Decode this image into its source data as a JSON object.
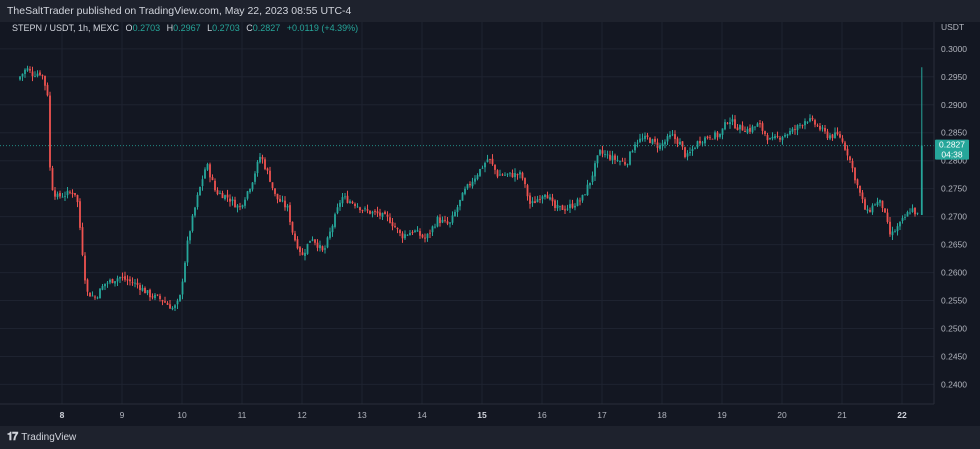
{
  "header": {
    "published": "TheSaltTrader published on TradingView.com, May 22, 2023 08:55 UTC-4"
  },
  "legend": {
    "symbol": "STEPN / USDT, 1h, MEXC",
    "o_label": "O",
    "o_value": "0.2703",
    "h_label": "H",
    "h_value": "0.2967",
    "l_label": "L",
    "l_value": "0.2703",
    "c_label": "C",
    "c_value": "0.2827",
    "change": "+0.0119 (+4.39%)"
  },
  "axis": {
    "currency": "USDT",
    "price_badge": "0.2827",
    "countdown": "04:38"
  },
  "footer": {
    "brand": "TradingView",
    "logo_icon": "tradingview-logo-icon"
  },
  "colors": {
    "up": "#26a69a",
    "down": "#ef5350",
    "background": "#131722",
    "grid": "#1e2330",
    "text": "#b2b5be"
  },
  "chart_data": {
    "type": "candlestick",
    "y_ticks": [
      "0.3000",
      "0.2950",
      "0.2900",
      "0.2850",
      "0.2800",
      "0.2750",
      "0.2700",
      "0.2650",
      "0.2600",
      "0.2550",
      "0.2500",
      "0.2450",
      "0.2400"
    ],
    "x_ticks": [
      "8",
      "9",
      "10",
      "11",
      "12",
      "13",
      "14",
      "15",
      "16",
      "17",
      "18",
      "19",
      "20",
      "21",
      "22"
    ],
    "x_ticks_bold": [
      "8",
      "15",
      "22"
    ],
    "ylim": [
      0.2365,
      0.3048
    ],
    "last_price": 0.2827,
    "path": [
      [
        7.3,
        0.2945
      ],
      [
        7.45,
        0.2965
      ],
      [
        7.55,
        0.2955
      ],
      [
        7.7,
        0.2958
      ],
      [
        7.8,
        0.292
      ],
      [
        7.85,
        0.276
      ],
      [
        7.95,
        0.2735
      ],
      [
        8.1,
        0.274
      ],
      [
        8.25,
        0.2745
      ],
      [
        8.3,
        0.2725
      ],
      [
        8.45,
        0.2565
      ],
      [
        8.6,
        0.2555
      ],
      [
        8.75,
        0.258
      ],
      [
        9.0,
        0.2592
      ],
      [
        9.15,
        0.2585
      ],
      [
        9.3,
        0.2578
      ],
      [
        9.5,
        0.256
      ],
      [
        9.7,
        0.2552
      ],
      [
        9.9,
        0.2535
      ],
      [
        10.0,
        0.255
      ],
      [
        10.15,
        0.2665
      ],
      [
        10.3,
        0.2735
      ],
      [
        10.45,
        0.2795
      ],
      [
        10.6,
        0.2745
      ],
      [
        10.8,
        0.2735
      ],
      [
        11.0,
        0.2715
      ],
      [
        11.2,
        0.276
      ],
      [
        11.35,
        0.281
      ],
      [
        11.5,
        0.277
      ],
      [
        11.6,
        0.2735
      ],
      [
        11.8,
        0.2715
      ],
      [
        11.9,
        0.2665
      ],
      [
        12.05,
        0.263
      ],
      [
        12.2,
        0.2665
      ],
      [
        12.4,
        0.2635
      ],
      [
        12.55,
        0.2685
      ],
      [
        12.7,
        0.2735
      ],
      [
        12.9,
        0.2725
      ],
      [
        13.1,
        0.271
      ],
      [
        13.3,
        0.2705
      ],
      [
        13.5,
        0.2695
      ],
      [
        13.7,
        0.2665
      ],
      [
        13.9,
        0.2675
      ],
      [
        14.1,
        0.266
      ],
      [
        14.3,
        0.2695
      ],
      [
        14.5,
        0.2685
      ],
      [
        14.75,
        0.2745
      ],
      [
        14.95,
        0.2775
      ],
      [
        15.15,
        0.2805
      ],
      [
        15.3,
        0.2775
      ],
      [
        15.5,
        0.2775
      ],
      [
        15.7,
        0.2775
      ],
      [
        15.85,
        0.272
      ],
      [
        16.1,
        0.2745
      ],
      [
        16.25,
        0.2715
      ],
      [
        16.45,
        0.2715
      ],
      [
        16.7,
        0.273
      ],
      [
        16.85,
        0.2765
      ],
      [
        17.0,
        0.2815
      ],
      [
        17.2,
        0.2805
      ],
      [
        17.45,
        0.2795
      ],
      [
        17.6,
        0.2835
      ],
      [
        17.8,
        0.284
      ],
      [
        18.0,
        0.2825
      ],
      [
        18.2,
        0.2845
      ],
      [
        18.35,
        0.283
      ],
      [
        18.45,
        0.2805
      ],
      [
        18.65,
        0.2835
      ],
      [
        18.85,
        0.2845
      ],
      [
        19.0,
        0.2845
      ],
      [
        19.15,
        0.2875
      ],
      [
        19.3,
        0.286
      ],
      [
        19.5,
        0.2855
      ],
      [
        19.65,
        0.2865
      ],
      [
        19.85,
        0.2835
      ],
      [
        20.05,
        0.2845
      ],
      [
        20.25,
        0.2855
      ],
      [
        20.45,
        0.2875
      ],
      [
        20.6,
        0.2865
      ],
      [
        20.8,
        0.2845
      ],
      [
        21.0,
        0.2845
      ],
      [
        21.15,
        0.281
      ],
      [
        21.3,
        0.2755
      ],
      [
        21.45,
        0.2705
      ],
      [
        21.6,
        0.2725
      ],
      [
        21.7,
        0.2725
      ],
      [
        21.85,
        0.2665
      ],
      [
        22.0,
        0.2685
      ],
      [
        22.2,
        0.2715
      ],
      [
        22.3,
        0.2703
      ],
      [
        22.32,
        0.2827
      ]
    ],
    "last_candle": {
      "open": 0.2703,
      "high": 0.2967,
      "low": 0.2703,
      "close": 0.2827
    }
  }
}
